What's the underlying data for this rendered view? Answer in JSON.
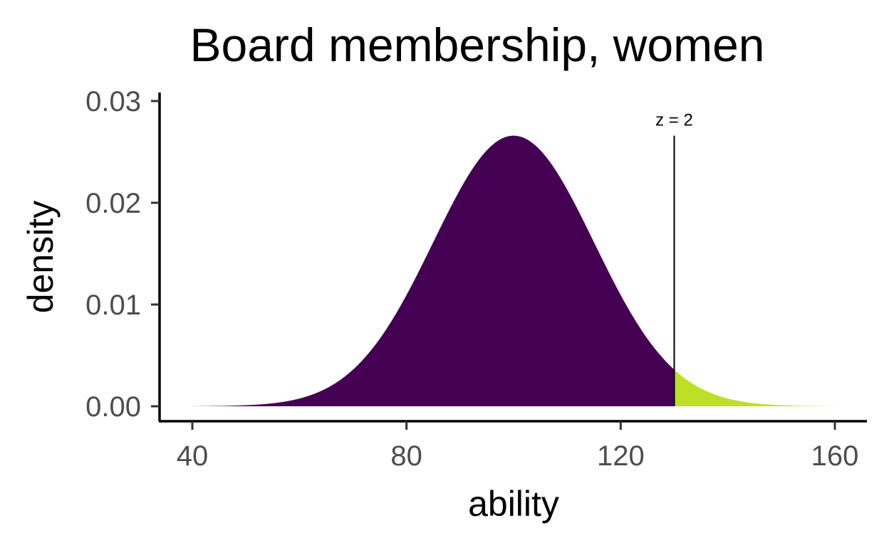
{
  "chart_data": {
    "type": "area",
    "title": "Board membership, women",
    "xlabel": "ability",
    "ylabel": "density",
    "xlim": [
      40,
      160
    ],
    "ylim": [
      0,
      0.03
    ],
    "x_ticks": [
      40,
      80,
      120,
      160
    ],
    "x_tick_labels": [
      "40",
      "80",
      "120",
      "160"
    ],
    "y_ticks": [
      0,
      0.01,
      0.02,
      0.03
    ],
    "y_tick_labels": [
      "0.00",
      "0.01",
      "0.02",
      "0.03"
    ],
    "distribution": {
      "kind": "normal",
      "mean": 100,
      "sd": 15
    },
    "series": [
      {
        "x_from": 40,
        "x_to": 130,
        "color": "#440154"
      },
      {
        "x_from": 130,
        "x_to": 160,
        "color": "#bddf26"
      }
    ],
    "cutoff": {
      "x": 130,
      "label": "z =  2"
    },
    "grid": false,
    "legend": "none"
  }
}
